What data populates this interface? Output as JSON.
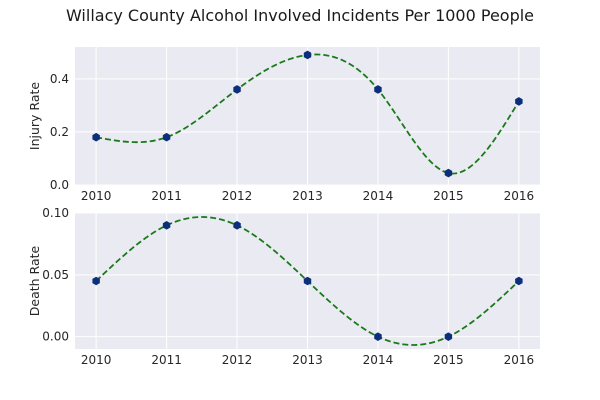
{
  "chart_data": {
    "type": "line",
    "title": "Willacy County Alcohol Involved Incidents Per 1000 People",
    "grid": true,
    "style": {
      "background": "#eaeaf2",
      "grid_color": "#ffffff",
      "line_color": "#1a7a1a",
      "line_style": "dashed",
      "marker_color": "#0b2f7a",
      "marker": "hexagon"
    },
    "panels": [
      {
        "ylabel": "Injury Rate",
        "x": [
          2010,
          2011,
          2012,
          2013,
          2014,
          2015,
          2016
        ],
        "values": [
          0.18,
          0.18,
          0.36,
          0.49,
          0.36,
          0.045,
          0.315
        ],
        "xticks": [
          "2010",
          "2011",
          "2012",
          "2013",
          "2014",
          "2015",
          "2016"
        ],
        "yticks": [
          0.0,
          0.2,
          0.4
        ],
        "ytick_labels": [
          "0.0",
          "0.2",
          "0.4"
        ],
        "ylim": [
          0.0,
          0.52
        ]
      },
      {
        "ylabel": "Death Rate",
        "x": [
          2010,
          2011,
          2012,
          2013,
          2014,
          2015,
          2016
        ],
        "values": [
          0.045,
          0.09,
          0.09,
          0.045,
          0.0,
          0.0,
          0.045
        ],
        "xticks": [
          "2010",
          "2011",
          "2012",
          "2013",
          "2014",
          "2015",
          "2016"
        ],
        "yticks": [
          0.0,
          0.05,
          0.1
        ],
        "ytick_labels": [
          "0.00",
          "0.05",
          "0.10"
        ],
        "ylim": [
          -0.01,
          0.1
        ]
      }
    ]
  }
}
